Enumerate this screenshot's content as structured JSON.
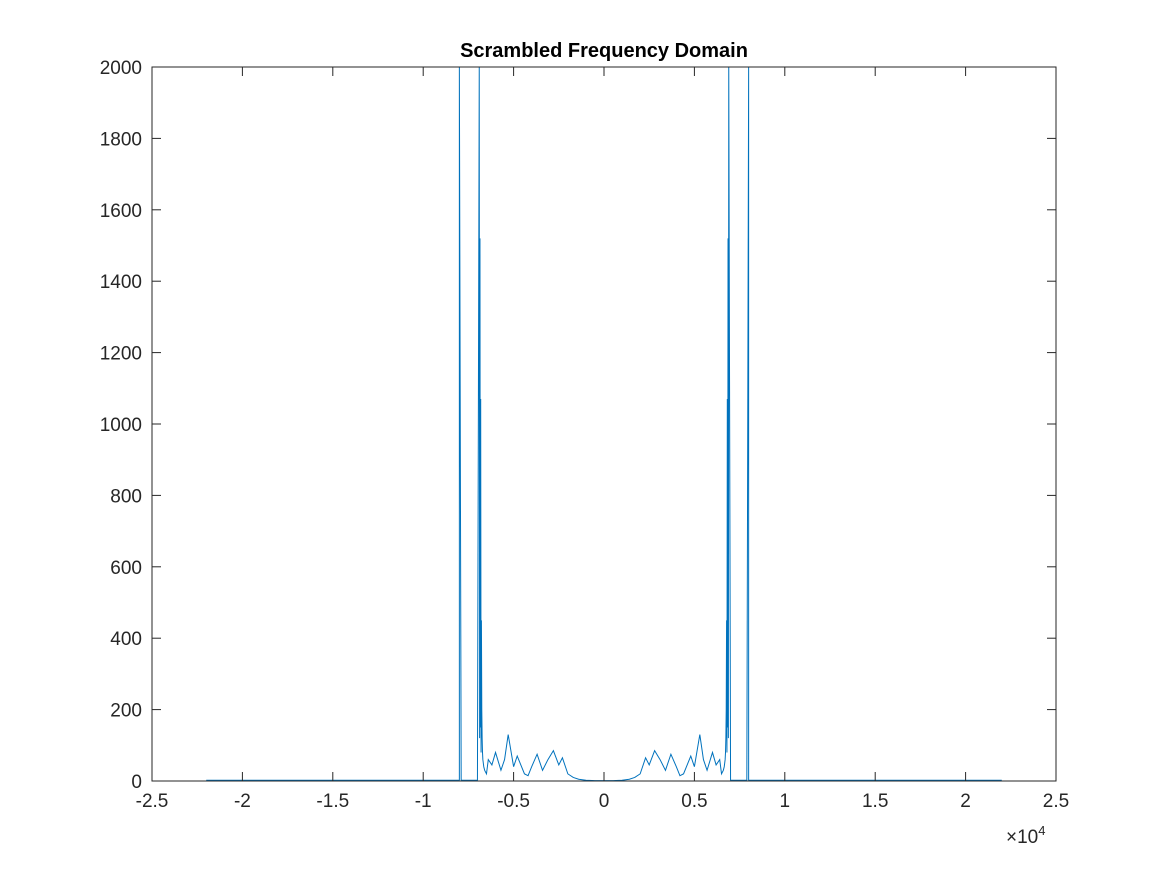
{
  "chart_data": {
    "type": "line",
    "title": "Scrambled Frequency Domain",
    "xlabel": "",
    "ylabel": "",
    "xlim": [
      -2.5,
      2.5
    ],
    "ylim": [
      0,
      2000
    ],
    "x_exponent_label": "×10",
    "x_exponent_power": "4",
    "x_ticks": [
      "-2.5",
      "-2",
      "-1.5",
      "-1",
      "-0.5",
      "0",
      "0.5",
      "1",
      "1.5",
      "2",
      "2.5"
    ],
    "y_ticks": [
      "0",
      "200",
      "400",
      "600",
      "800",
      "1000",
      "1200",
      "1400",
      "1600",
      "1800",
      "2000"
    ],
    "grid": false,
    "line_color": "#0072BD",
    "data_x_range": [
      -2.2,
      2.2
    ],
    "series": [
      {
        "x": [
          -2.2,
          -0.81,
          -0.8,
          -0.8,
          -0.79,
          -0.7,
          -0.69,
          -0.688,
          -0.686,
          -0.684,
          -0.682,
          -0.68,
          -0.678,
          -0.676,
          -0.674,
          -0.672,
          -0.67,
          -0.665,
          -0.66,
          -0.65,
          -0.64,
          -0.62,
          -0.6,
          -0.57,
          -0.55,
          -0.53,
          -0.5,
          -0.48,
          -0.46,
          -0.44,
          -0.42,
          -0.4,
          -0.37,
          -0.34,
          -0.31,
          -0.28,
          -0.25,
          -0.23,
          -0.2,
          -0.17,
          -0.14,
          -0.1,
          -0.05,
          0,
          0.05,
          0.1,
          0.14,
          0.17,
          0.2,
          0.23,
          0.25,
          0.28,
          0.31,
          0.34,
          0.37,
          0.4,
          0.42,
          0.44,
          0.46,
          0.48,
          0.5,
          0.53,
          0.55,
          0.57,
          0.6,
          0.62,
          0.64,
          0.65,
          0.66,
          0.665,
          0.67,
          0.672,
          0.674,
          0.676,
          0.678,
          0.68,
          0.682,
          0.684,
          0.686,
          0.688,
          0.69,
          0.7,
          0.79,
          0.8,
          0.8,
          0.81,
          2.2
        ],
        "y": [
          2,
          2,
          2,
          2000,
          2,
          2,
          2000,
          120,
          1520,
          150,
          1070,
          80,
          450,
          200,
          120,
          80,
          60,
          40,
          30,
          20,
          60,
          45,
          80,
          30,
          60,
          130,
          40,
          70,
          45,
          20,
          15,
          40,
          75,
          30,
          60,
          85,
          45,
          65,
          20,
          10,
          5,
          2,
          1,
          1,
          1,
          2,
          5,
          10,
          20,
          65,
          45,
          85,
          60,
          30,
          75,
          40,
          15,
          20,
          45,
          70,
          40,
          130,
          60,
          30,
          80,
          45,
          60,
          20,
          30,
          40,
          60,
          80,
          120,
          200,
          450,
          80,
          1070,
          150,
          1520,
          120,
          2000,
          2,
          2,
          2000,
          2,
          2,
          2
        ]
      }
    ]
  }
}
